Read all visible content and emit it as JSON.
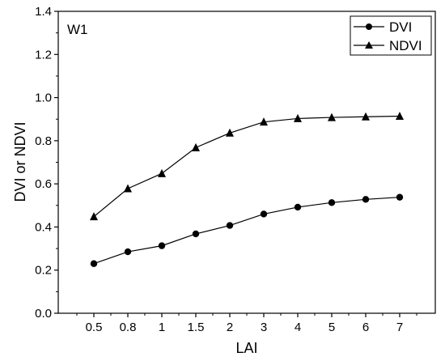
{
  "chart_data": {
    "type": "line",
    "panel_label": "W1",
    "xlabel": "LAI",
    "ylabel": "DVI or NDVI",
    "categories": [
      "0.5",
      "0.8",
      "1",
      "1.5",
      "2",
      "3",
      "4",
      "5",
      "6",
      "7"
    ],
    "ylim": [
      0.0,
      1.4
    ],
    "yticks": [
      "0.0",
      "0.2",
      "0.4",
      "0.6",
      "0.8",
      "1.0",
      "1.2",
      "1.4"
    ],
    "grid": false,
    "legend_position": "top-right",
    "series": [
      {
        "name": "DVI",
        "marker": "circle",
        "color": "#000000",
        "values": [
          0.23,
          0.285,
          0.313,
          0.368,
          0.407,
          0.46,
          0.492,
          0.513,
          0.528,
          0.538
        ]
      },
      {
        "name": "NDVI",
        "marker": "triangle",
        "color": "#000000",
        "values": [
          0.448,
          0.578,
          0.648,
          0.768,
          0.836,
          0.887,
          0.903,
          0.908,
          0.911,
          0.914
        ]
      }
    ]
  }
}
